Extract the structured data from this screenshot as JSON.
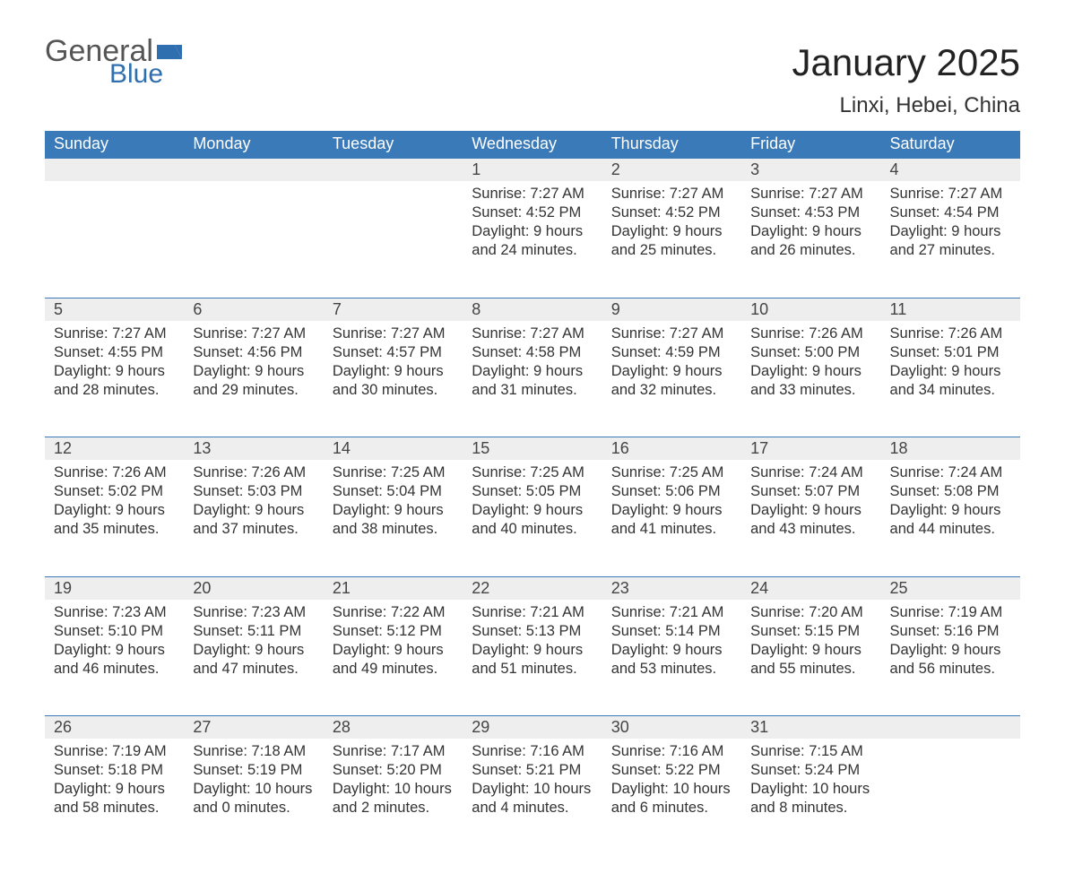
{
  "brand": {
    "word1": "General",
    "word2": "Blue",
    "flag_color": "#2f6fb0",
    "word1_color": "#555555",
    "word2_color": "#2f6fb0"
  },
  "header": {
    "title": "January 2025",
    "location": "Linxi, Hebei, China"
  },
  "colors": {
    "header_bg": "#3a7ab8",
    "header_text": "#ffffff",
    "daynum_bg": "#eeeeee",
    "daynum_border": "#3a7ab8",
    "body_text": "#333333",
    "page_bg": "#ffffff"
  },
  "weekdays": [
    "Sunday",
    "Monday",
    "Tuesday",
    "Wednesday",
    "Thursday",
    "Friday",
    "Saturday"
  ],
  "weeks": [
    {
      "nums": [
        "",
        "",
        "",
        "1",
        "2",
        "3",
        "4"
      ],
      "cells": [
        {},
        {},
        {},
        {
          "sunrise": "Sunrise: 7:27 AM",
          "sunset": "Sunset: 4:52 PM",
          "d1": "Daylight: 9 hours",
          "d2": "and 24 minutes."
        },
        {
          "sunrise": "Sunrise: 7:27 AM",
          "sunset": "Sunset: 4:52 PM",
          "d1": "Daylight: 9 hours",
          "d2": "and 25 minutes."
        },
        {
          "sunrise": "Sunrise: 7:27 AM",
          "sunset": "Sunset: 4:53 PM",
          "d1": "Daylight: 9 hours",
          "d2": "and 26 minutes."
        },
        {
          "sunrise": "Sunrise: 7:27 AM",
          "sunset": "Sunset: 4:54 PM",
          "d1": "Daylight: 9 hours",
          "d2": "and 27 minutes."
        }
      ]
    },
    {
      "nums": [
        "5",
        "6",
        "7",
        "8",
        "9",
        "10",
        "11"
      ],
      "cells": [
        {
          "sunrise": "Sunrise: 7:27 AM",
          "sunset": "Sunset: 4:55 PM",
          "d1": "Daylight: 9 hours",
          "d2": "and 28 minutes."
        },
        {
          "sunrise": "Sunrise: 7:27 AM",
          "sunset": "Sunset: 4:56 PM",
          "d1": "Daylight: 9 hours",
          "d2": "and 29 minutes."
        },
        {
          "sunrise": "Sunrise: 7:27 AM",
          "sunset": "Sunset: 4:57 PM",
          "d1": "Daylight: 9 hours",
          "d2": "and 30 minutes."
        },
        {
          "sunrise": "Sunrise: 7:27 AM",
          "sunset": "Sunset: 4:58 PM",
          "d1": "Daylight: 9 hours",
          "d2": "and 31 minutes."
        },
        {
          "sunrise": "Sunrise: 7:27 AM",
          "sunset": "Sunset: 4:59 PM",
          "d1": "Daylight: 9 hours",
          "d2": "and 32 minutes."
        },
        {
          "sunrise": "Sunrise: 7:26 AM",
          "sunset": "Sunset: 5:00 PM",
          "d1": "Daylight: 9 hours",
          "d2": "and 33 minutes."
        },
        {
          "sunrise": "Sunrise: 7:26 AM",
          "sunset": "Sunset: 5:01 PM",
          "d1": "Daylight: 9 hours",
          "d2": "and 34 minutes."
        }
      ]
    },
    {
      "nums": [
        "12",
        "13",
        "14",
        "15",
        "16",
        "17",
        "18"
      ],
      "cells": [
        {
          "sunrise": "Sunrise: 7:26 AM",
          "sunset": "Sunset: 5:02 PM",
          "d1": "Daylight: 9 hours",
          "d2": "and 35 minutes."
        },
        {
          "sunrise": "Sunrise: 7:26 AM",
          "sunset": "Sunset: 5:03 PM",
          "d1": "Daylight: 9 hours",
          "d2": "and 37 minutes."
        },
        {
          "sunrise": "Sunrise: 7:25 AM",
          "sunset": "Sunset: 5:04 PM",
          "d1": "Daylight: 9 hours",
          "d2": "and 38 minutes."
        },
        {
          "sunrise": "Sunrise: 7:25 AM",
          "sunset": "Sunset: 5:05 PM",
          "d1": "Daylight: 9 hours",
          "d2": "and 40 minutes."
        },
        {
          "sunrise": "Sunrise: 7:25 AM",
          "sunset": "Sunset: 5:06 PM",
          "d1": "Daylight: 9 hours",
          "d2": "and 41 minutes."
        },
        {
          "sunrise": "Sunrise: 7:24 AM",
          "sunset": "Sunset: 5:07 PM",
          "d1": "Daylight: 9 hours",
          "d2": "and 43 minutes."
        },
        {
          "sunrise": "Sunrise: 7:24 AM",
          "sunset": "Sunset: 5:08 PM",
          "d1": "Daylight: 9 hours",
          "d2": "and 44 minutes."
        }
      ]
    },
    {
      "nums": [
        "19",
        "20",
        "21",
        "22",
        "23",
        "24",
        "25"
      ],
      "cells": [
        {
          "sunrise": "Sunrise: 7:23 AM",
          "sunset": "Sunset: 5:10 PM",
          "d1": "Daylight: 9 hours",
          "d2": "and 46 minutes."
        },
        {
          "sunrise": "Sunrise: 7:23 AM",
          "sunset": "Sunset: 5:11 PM",
          "d1": "Daylight: 9 hours",
          "d2": "and 47 minutes."
        },
        {
          "sunrise": "Sunrise: 7:22 AM",
          "sunset": "Sunset: 5:12 PM",
          "d1": "Daylight: 9 hours",
          "d2": "and 49 minutes."
        },
        {
          "sunrise": "Sunrise: 7:21 AM",
          "sunset": "Sunset: 5:13 PM",
          "d1": "Daylight: 9 hours",
          "d2": "and 51 minutes."
        },
        {
          "sunrise": "Sunrise: 7:21 AM",
          "sunset": "Sunset: 5:14 PM",
          "d1": "Daylight: 9 hours",
          "d2": "and 53 minutes."
        },
        {
          "sunrise": "Sunrise: 7:20 AM",
          "sunset": "Sunset: 5:15 PM",
          "d1": "Daylight: 9 hours",
          "d2": "and 55 minutes."
        },
        {
          "sunrise": "Sunrise: 7:19 AM",
          "sunset": "Sunset: 5:16 PM",
          "d1": "Daylight: 9 hours",
          "d2": "and 56 minutes."
        }
      ]
    },
    {
      "nums": [
        "26",
        "27",
        "28",
        "29",
        "30",
        "31",
        ""
      ],
      "cells": [
        {
          "sunrise": "Sunrise: 7:19 AM",
          "sunset": "Sunset: 5:18 PM",
          "d1": "Daylight: 9 hours",
          "d2": "and 58 minutes."
        },
        {
          "sunrise": "Sunrise: 7:18 AM",
          "sunset": "Sunset: 5:19 PM",
          "d1": "Daylight: 10 hours",
          "d2": "and 0 minutes."
        },
        {
          "sunrise": "Sunrise: 7:17 AM",
          "sunset": "Sunset: 5:20 PM",
          "d1": "Daylight: 10 hours",
          "d2": "and 2 minutes."
        },
        {
          "sunrise": "Sunrise: 7:16 AM",
          "sunset": "Sunset: 5:21 PM",
          "d1": "Daylight: 10 hours",
          "d2": "and 4 minutes."
        },
        {
          "sunrise": "Sunrise: 7:16 AM",
          "sunset": "Sunset: 5:22 PM",
          "d1": "Daylight: 10 hours",
          "d2": "and 6 minutes."
        },
        {
          "sunrise": "Sunrise: 7:15 AM",
          "sunset": "Sunset: 5:24 PM",
          "d1": "Daylight: 10 hours",
          "d2": "and 8 minutes."
        },
        {}
      ]
    }
  ]
}
